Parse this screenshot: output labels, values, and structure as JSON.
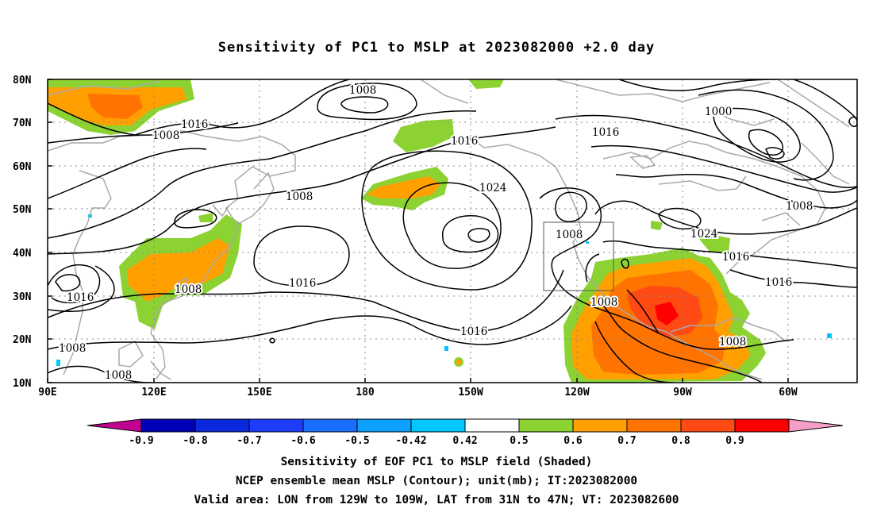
{
  "title": "Sensitivity of PC1 to MSLP at 2023082000 +2.0 day",
  "lat_labels": [
    "80N",
    "70N",
    "60N",
    "50N",
    "40N",
    "30N",
    "20N",
    "10N"
  ],
  "lon_labels": [
    "90E",
    "120E",
    "150E",
    "180",
    "150W",
    "120W",
    "90W",
    "60W"
  ],
  "contour_labels": [
    "1008",
    "1016",
    "1008",
    "1008",
    "1016",
    "1024",
    "1016",
    "1008",
    "1000",
    "1008",
    "1024",
    "1016",
    "1016",
    "1016",
    "1008",
    "1008",
    "1016",
    "1008",
    "1008"
  ],
  "colorbar": {
    "tick_labels": [
      "-0.9",
      "-0.8",
      "-0.7",
      "-0.6",
      "-0.5",
      "-0.42",
      "0.42",
      "0.5",
      "0.6",
      "0.7",
      "0.8",
      "0.9"
    ],
    "colors": [
      "#c0008e",
      "#0000b4",
      "#0a28dc",
      "#1e3cff",
      "#1a6eff",
      "#0ca0ff",
      "#00c8ff",
      "#ffffff",
      "#8cd232",
      "#ff9f00",
      "#ff7300",
      "#ff4a14",
      "#ff0000",
      "#f59fc8"
    ]
  },
  "caption": {
    "line1": "Sensitivity of EOF PC1 to MSLP field (Shaded)",
    "line2": "NCEP ensemble mean MSLP (Contour); unit(mb); IT:2023082000",
    "line3": "Valid area: LON from 129W to 109W, LAT from 31N to 47N; VT: 2023082600"
  }
}
